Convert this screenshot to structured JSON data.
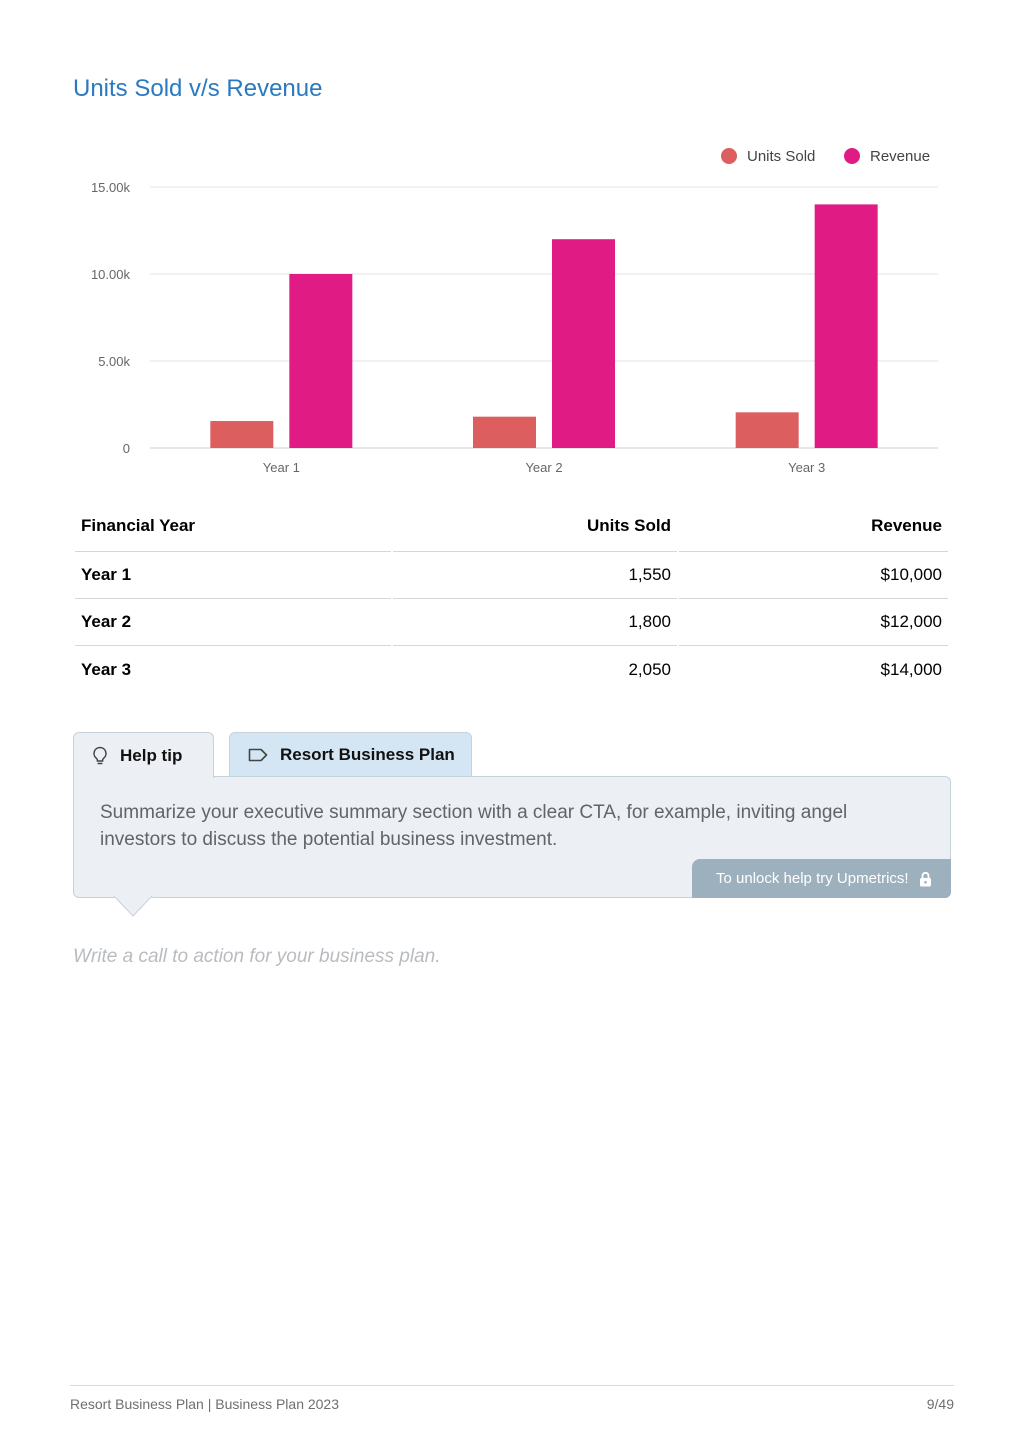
{
  "section_title": "Units Sold v/s Revenue",
  "chart_data": {
    "type": "bar",
    "categories": [
      "Year 1",
      "Year 2",
      "Year 3"
    ],
    "series": [
      {
        "name": "Units Sold",
        "values": [
          1550,
          1800,
          2050
        ],
        "color": "#dc5e5e"
      },
      {
        "name": "Revenue",
        "values": [
          10000,
          12000,
          14000
        ],
        "color": "#e01b84"
      }
    ],
    "yticks": [
      0,
      5000,
      10000,
      15000
    ],
    "ytick_labels": [
      "0",
      "5.00k",
      "10.00k",
      "15.00k"
    ],
    "ylim": [
      0,
      15000
    ],
    "grid": true,
    "legend_position": "top-right"
  },
  "table": {
    "headers": [
      "Financial Year",
      "Units Sold",
      "Revenue"
    ],
    "rows": [
      [
        "Year 1",
        "1,550",
        "$10,000"
      ],
      [
        "Year 2",
        "1,800",
        "$12,000"
      ],
      [
        "Year 3",
        "2,050",
        "$14,000"
      ]
    ]
  },
  "help": {
    "tab_help_label": "Help tip",
    "tab_plan_label": "Resort Business Plan",
    "text": "Summarize your executive summary section with a clear CTA, for example, inviting angel investors to discuss the potential business investment.",
    "unlock_label": "To unlock help try Upmetrics!"
  },
  "cta_placeholder": "Write a call to action for your business plan.",
  "footer": {
    "left": "Resort Business Plan | Business Plan 2023",
    "right": "9/49"
  },
  "icons": [
    "lightbulb-icon",
    "tag-icon",
    "lock-icon"
  ]
}
